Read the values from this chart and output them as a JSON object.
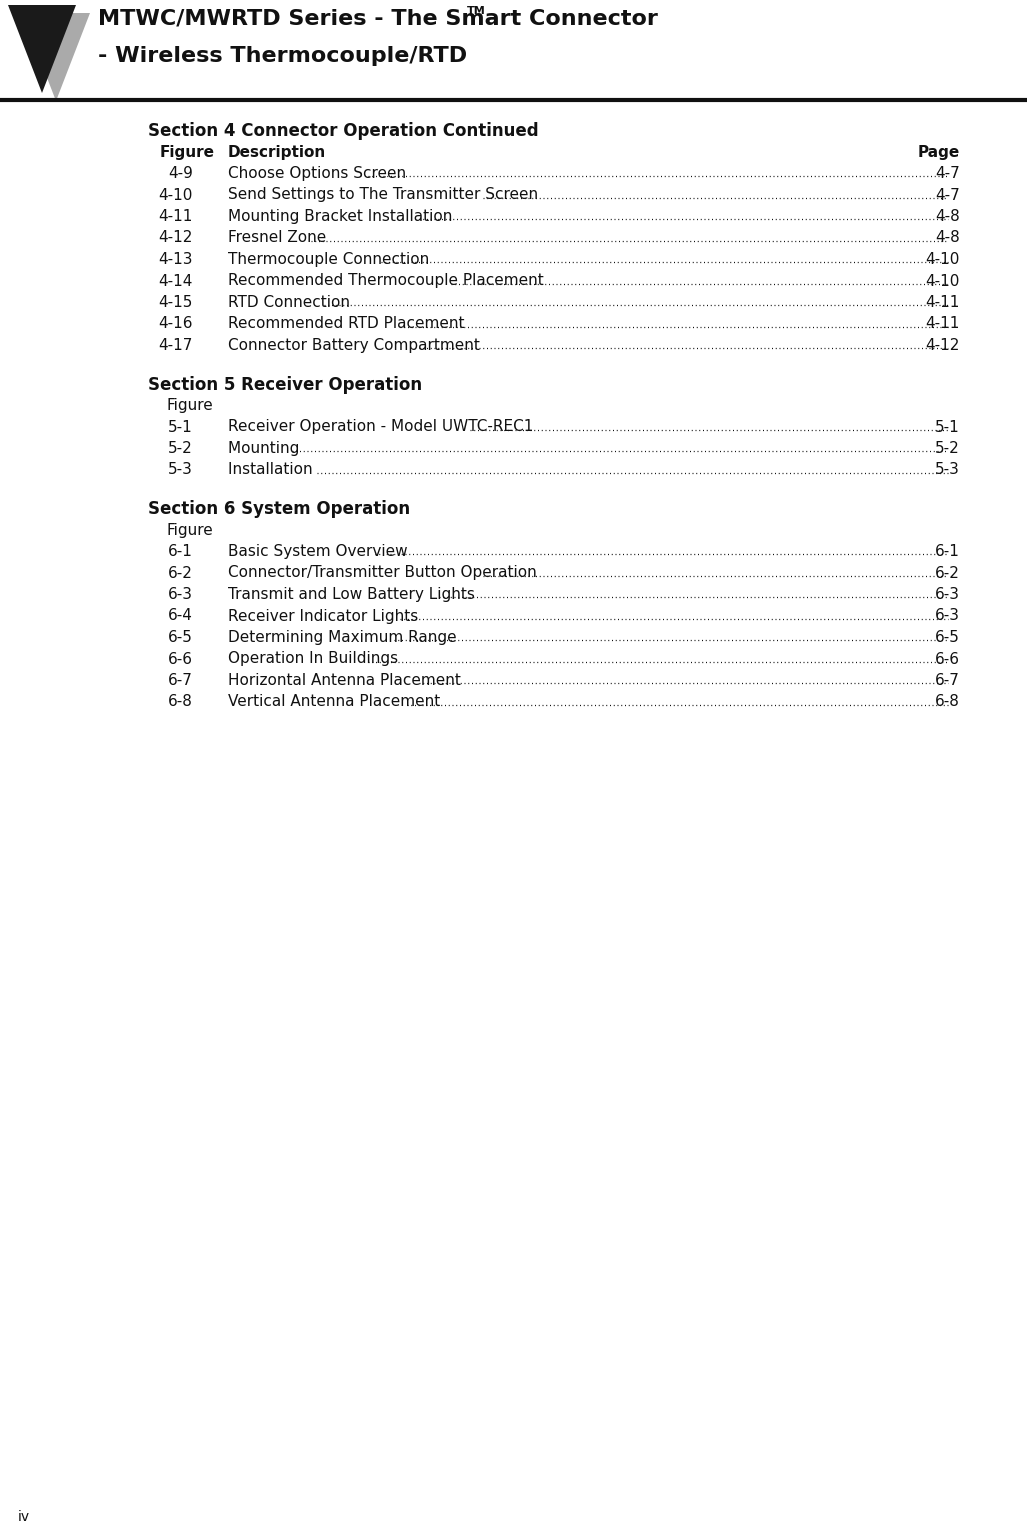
{
  "header_title_line1": "MTWC/MWRTD Series - The Smart Connector",
  "header_title_tm": "TM",
  "header_title_line2": "- Wireless Thermocouple/RTD",
  "page_number": "iv",
  "bg_color": "#ffffff",
  "header_text_color": "#111111",
  "body_text_color": "#111111",
  "rule_color": "#111111",
  "sections": [
    {
      "title": "Section 4 Connector Operation Continued",
      "has_figure_header": true,
      "figure_label": "Figure",
      "desc_label": "Description",
      "page_label": "Page",
      "entries": [
        {
          "fig": "4-9",
          "desc": "Choose Options Screen ",
          "page": "4-7"
        },
        {
          "fig": "4-10",
          "desc": "Send Settings to The Transmitter Screen ",
          "page": "4-7"
        },
        {
          "fig": "4-11",
          "desc": "Mounting Bracket Installation ",
          "page": "4-8"
        },
        {
          "fig": "4-12",
          "desc": "Fresnel Zone ",
          "page": "4-8"
        },
        {
          "fig": "4-13",
          "desc": "Thermocouple Connection ",
          "page": "4-10"
        },
        {
          "fig": "4-14",
          "desc": "Recommended Thermocouple Placement ",
          "page": "4-10"
        },
        {
          "fig": "4-15",
          "desc": "RTD Connection ",
          "page": "4-11"
        },
        {
          "fig": "4-16",
          "desc": "Recommended RTD Placement  ",
          "page": "4-11"
        },
        {
          "fig": "4-17",
          "desc": "Connector Battery Compartment ",
          "page": "4-12"
        }
      ]
    },
    {
      "title": "Section 5 Receiver Operation",
      "has_figure_header": false,
      "figure_label": "Figure",
      "desc_label": "",
      "page_label": "",
      "entries": [
        {
          "fig": "5-1",
          "desc": "Receiver Operation - Model UWTC-REC1  ",
          "page": "5-1"
        },
        {
          "fig": "5-2",
          "desc": "Mounting  ",
          "page": "5-2"
        },
        {
          "fig": "5-3",
          "desc": "Installation  ",
          "page": "5-3"
        }
      ]
    },
    {
      "title": "Section 6 System Operation",
      "has_figure_header": false,
      "figure_label": "Figure",
      "desc_label": "",
      "page_label": "",
      "entries": [
        {
          "fig": "6-1",
          "desc": "Basic System Overview  ",
          "page": "6-1"
        },
        {
          "fig": "6-2",
          "desc": "Connector/Transmitter Button Operation  ",
          "page": "6-2"
        },
        {
          "fig": "6-3",
          "desc": "Transmit and Low Battery Lights  ",
          "page": "6-3"
        },
        {
          "fig": "6-4",
          "desc": "Receiver Indicator Lights  ",
          "page": "6-3"
        },
        {
          "fig": "6-5",
          "desc": "Determining Maximum Range ",
          "page": "6-5"
        },
        {
          "fig": "6-6",
          "desc": "Operation In Buildings",
          "page": "6-6"
        },
        {
          "fig": "6-7",
          "desc": "Horizontal Antenna Placement  ",
          "page": "6-7"
        },
        {
          "fig": "6-8",
          "desc": "Vertical Antenna Placement  ",
          "page": "6-8"
        }
      ]
    }
  ]
}
